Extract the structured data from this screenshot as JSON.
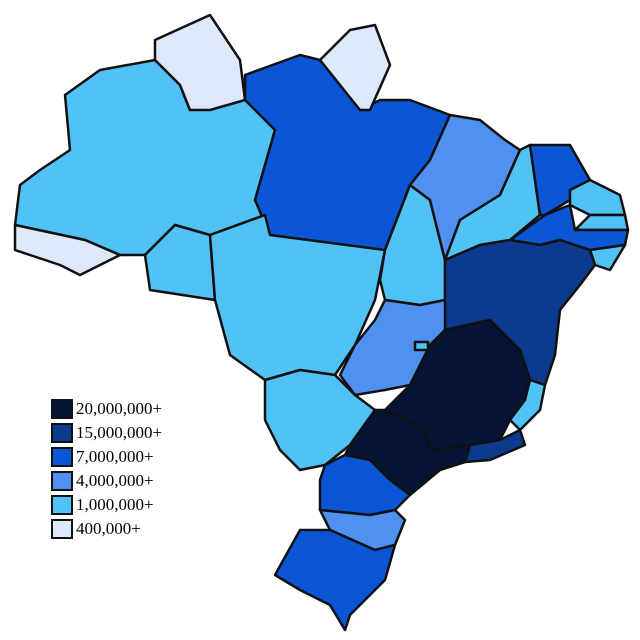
{
  "legend": [
    {
      "label": "20,000,000+",
      "color": "#061535"
    },
    {
      "label": "15,000,000+",
      "color": "#0b3a8e"
    },
    {
      "label": "7,000,000+",
      "color": "#0a56d6"
    },
    {
      "label": "4,000,000+",
      "color": "#5090f0"
    },
    {
      "label": "1,000,000+",
      "color": "#50c2f6"
    },
    {
      "label": "400,000+",
      "color": "#dde8fb"
    }
  ]
}
